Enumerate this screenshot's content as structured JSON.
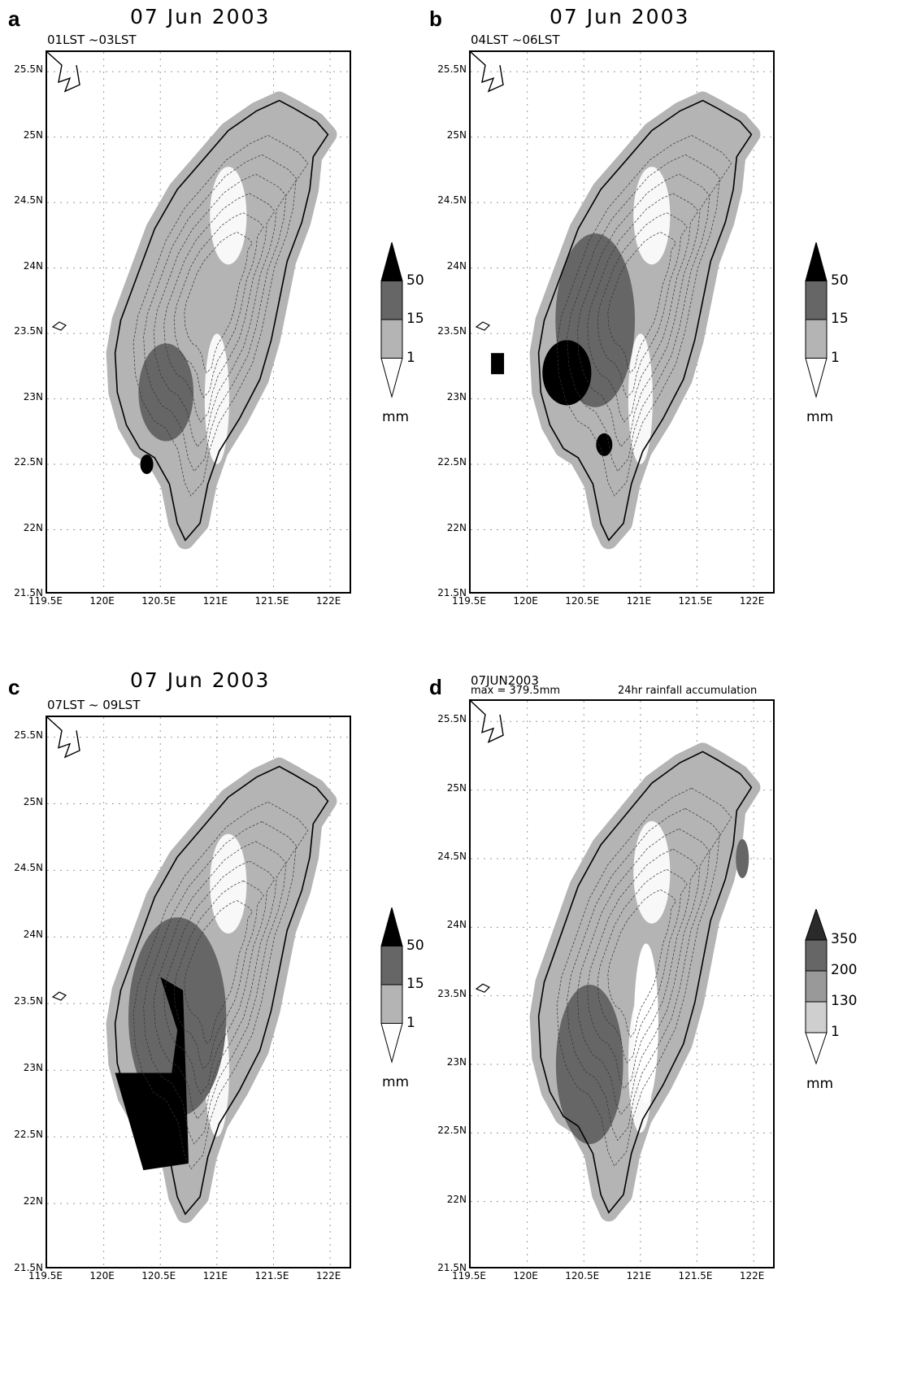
{
  "figure": {
    "panels": [
      {
        "letter": "a",
        "title": "07 Jun 2003",
        "subtitle": "01LST ~03LST",
        "y_ticks": [
          "25.5N",
          "25N",
          "24.5N",
          "24N",
          "23.5N",
          "23N",
          "22.5N",
          "22N",
          "21.5N"
        ],
        "x_ticks": [
          "119.5E",
          "120E",
          "120.5E",
          "121E",
          "121.5E",
          "122E"
        ],
        "legend_values": [
          "50",
          "15",
          "1"
        ],
        "unit": "mm",
        "legend_colors": [
          "#000000",
          "#666666",
          "#b4b4b4",
          "#ffffff"
        ]
      },
      {
        "letter": "b",
        "title": "07 Jun 2003",
        "subtitle": "04LST ~06LST",
        "y_ticks": [
          "25.5N",
          "25N",
          "24.5N",
          "24N",
          "23.5N",
          "23N",
          "22.5N",
          "22N",
          "21.5N"
        ],
        "x_ticks": [
          "119.5E",
          "120E",
          "120.5E",
          "121E",
          "121.5E",
          "122E"
        ],
        "legend_values": [
          "50",
          "15",
          "1"
        ],
        "unit": "mm",
        "legend_colors": [
          "#000000",
          "#666666",
          "#b4b4b4",
          "#ffffff"
        ]
      },
      {
        "letter": "c",
        "title": "07 Jun 2003",
        "subtitle": "07LST ~ 09LST",
        "y_ticks": [
          "25.5N",
          "25N",
          "24.5N",
          "24N",
          "23.5N",
          "23N",
          "22.5N",
          "22N",
          "21.5N"
        ],
        "x_ticks": [
          "119.5E",
          "120E",
          "120.5E",
          "121E",
          "121.5E",
          "122E"
        ],
        "legend_values": [
          "50",
          "15",
          "1"
        ],
        "unit": "mm",
        "legend_colors": [
          "#000000",
          "#666666",
          "#b4b4b4",
          "#ffffff"
        ]
      },
      {
        "letter": "d",
        "title": "07JUN2003",
        "subtitle": "max = 379.5mm",
        "right_note": "24hr rainfall accumulation",
        "y_ticks": [
          "25.5N",
          "25N",
          "24.5N",
          "24N",
          "23.5N",
          "23N",
          "22.5N",
          "22N",
          "21.5N"
        ],
        "x_ticks": [
          "119.5E",
          "120E",
          "120.5E",
          "121E",
          "121.5E",
          "122E"
        ],
        "legend_values": [
          "350",
          "200",
          "130",
          "1"
        ],
        "unit": "mm",
        "legend_colors": [
          "#2a2a2a",
          "#666666",
          "#999999",
          "#cfcfcf",
          "#ffffff"
        ]
      }
    ]
  }
}
